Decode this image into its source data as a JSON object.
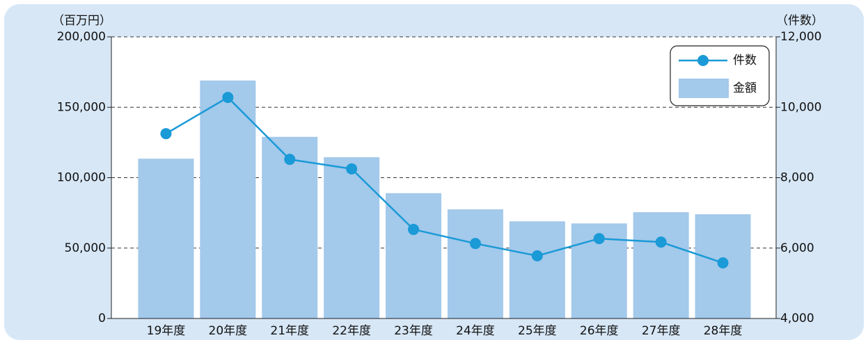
{
  "chart_data": {
    "type": "bar_line",
    "y_unit_label": "（百万円）",
    "y2_unit_label": "（件数）",
    "categories": [
      "19年度",
      "20年度",
      "21年度",
      "22年度",
      "23年度",
      "24年度",
      "25年度",
      "26年度",
      "27年度",
      "28年度"
    ],
    "series": [
      {
        "name": "件数",
        "type": "line",
        "axis": "y2",
        "color": "#1a9ad6",
        "values": [
          9250,
          10280,
          8520,
          8250,
          6530,
          6130,
          5780,
          6270,
          6170,
          5580
        ]
      },
      {
        "name": "金額",
        "type": "bar",
        "axis": "y",
        "color": "#a3c9eb",
        "values": [
          113500,
          169000,
          129000,
          114500,
          89000,
          77500,
          69000,
          67500,
          75500,
          74000
        ]
      }
    ],
    "ylim": [
      0,
      200000
    ],
    "yticks": [
      0,
      {
        "value": 50000,
        "label": "50,000"
      },
      {
        "value": 100000,
        "label": "100,000"
      },
      {
        "value": 150000,
        "label": "150,000"
      },
      {
        "value": 200000,
        "label": "200,000"
      }
    ],
    "y2lim": [
      4000,
      12000
    ],
    "y2ticks": [
      {
        "value": 4000,
        "label": "4,000"
      },
      {
        "value": 6000,
        "label": "6,000"
      },
      {
        "value": 8000,
        "label": "8,000"
      },
      {
        "value": 10000,
        "label": "10,000"
      },
      {
        "value": 12000,
        "label": "12,000"
      }
    ],
    "grid": true,
    "legend": "upper right"
  }
}
